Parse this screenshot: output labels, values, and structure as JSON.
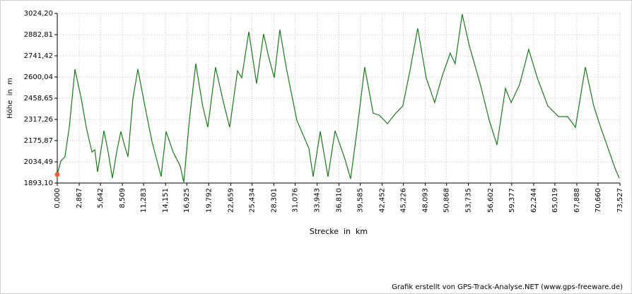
{
  "chart_data": {
    "type": "line",
    "y_label": "Höhe  in  m",
    "x_label": "Strecke  in  km",
    "footer": "Grafik erstellt von GPS-Track-Analyse.NET (www.gps-freeware.de)",
    "grid": true,
    "start_marker_color": "#e8603c",
    "xlim": [
      0,
      73.527
    ],
    "ylim": [
      1893.1,
      3024.2
    ],
    "xticks": [
      {
        "value": 0,
        "label": "0,000"
      },
      {
        "value": 2.867,
        "label": "2,867"
      },
      {
        "value": 5.642,
        "label": "5,642"
      },
      {
        "value": 8.509,
        "label": "8,509"
      },
      {
        "value": 11.283,
        "label": "11,283"
      },
      {
        "value": 14.151,
        "label": "14,151"
      },
      {
        "value": 16.925,
        "label": "16,925"
      },
      {
        "value": 19.792,
        "label": "19,792"
      },
      {
        "value": 22.659,
        "label": "22,659"
      },
      {
        "value": 25.434,
        "label": "25,434"
      },
      {
        "value": 28.301,
        "label": "28,301"
      },
      {
        "value": 31.076,
        "label": "31,076"
      },
      {
        "value": 33.943,
        "label": "33,943"
      },
      {
        "value": 36.81,
        "label": "36,810"
      },
      {
        "value": 39.585,
        "label": "39,585"
      },
      {
        "value": 42.452,
        "label": "42,452"
      },
      {
        "value": 45.226,
        "label": "45,226"
      },
      {
        "value": 48.093,
        "label": "48,093"
      },
      {
        "value": 50.868,
        "label": "50,868"
      },
      {
        "value": 53.735,
        "label": "53,735"
      },
      {
        "value": 56.602,
        "label": "56,602"
      },
      {
        "value": 59.377,
        "label": "59,377"
      },
      {
        "value": 62.244,
        "label": "62,244"
      },
      {
        "value": 65.019,
        "label": "65,019"
      },
      {
        "value": 67.888,
        "label": "67,888"
      },
      {
        "value": 70.66,
        "label": "70,660"
      },
      {
        "value": 73.527,
        "label": "73,527"
      }
    ],
    "yticks": [
      {
        "value": 1893.1,
        "label": "1893,10"
      },
      {
        "value": 2034.49,
        "label": "2034,49"
      },
      {
        "value": 2175.87,
        "label": "2175,87"
      },
      {
        "value": 2317.26,
        "label": "2317,26"
      },
      {
        "value": 2458.65,
        "label": "2458,65"
      },
      {
        "value": 2600.04,
        "label": "2600,04"
      },
      {
        "value": 2741.42,
        "label": "2741,42"
      },
      {
        "value": 2882.81,
        "label": "2882,81"
      },
      {
        "value": 3024.2,
        "label": "3024,20"
      }
    ],
    "series": [
      {
        "color": "#1a7a1a",
        "x": [
          0,
          0.46,
          1.0,
          1.57,
          2.31,
          3.14,
          3.79,
          4.53,
          4.9,
          5.27,
          6.1,
          6.65,
          7.2,
          7.76,
          8.31,
          8.77,
          9.24,
          9.88,
          10.53,
          11.45,
          12.37,
          13.57,
          14.22,
          15.14,
          16.07,
          16.53,
          17.26,
          18.1,
          19.0,
          19.67,
          20.68,
          21.61,
          22.53,
          23.55,
          24.1,
          25.03,
          26.04,
          26.96,
          27.61,
          28.35,
          29.08,
          29.91,
          31.3,
          32.88,
          33.43,
          34.36,
          35.37,
          36.3,
          37.59,
          38.33,
          39.16,
          40.17,
          41.28,
          42.1,
          43.13,
          44.23,
          45.15,
          46.08,
          47.1,
          48.2,
          49.31,
          50.23,
          51.34,
          51.98,
          52.91,
          53.85,
          55.3,
          56.44,
          57.45,
          58.56,
          59.3,
          60.4,
          61.6,
          62.72,
          64.1,
          65.5,
          66.69,
          67.71,
          69.0,
          70.1,
          71.0,
          72.14,
          72.88,
          73.43
        ],
        "values": [
          1950,
          2039,
          2068,
          2265,
          2652,
          2454,
          2265,
          2100,
          2115,
          1968,
          2242,
          2100,
          1926,
          2100,
          2237,
          2148,
          2068,
          2454,
          2652,
          2407,
          2171,
          1936,
          2237,
          2100,
          2006,
          1898,
          2312,
          2689,
          2407,
          2265,
          2666,
          2454,
          2265,
          2642,
          2595,
          2902,
          2557,
          2887,
          2737,
          2595,
          2916,
          2666,
          2312,
          2124,
          1936,
          2237,
          1936,
          2242,
          2053,
          1921,
          2242,
          2666,
          2359,
          2345,
          2289,
          2359,
          2407,
          2642,
          2925,
          2595,
          2430,
          2595,
          2760,
          2689,
          3019,
          2807,
          2548,
          2312,
          2148,
          2525,
          2430,
          2548,
          2784,
          2595,
          2407,
          2336,
          2336,
          2265,
          2666,
          2407,
          2265,
          2100,
          1992,
          1926
        ]
      }
    ]
  }
}
